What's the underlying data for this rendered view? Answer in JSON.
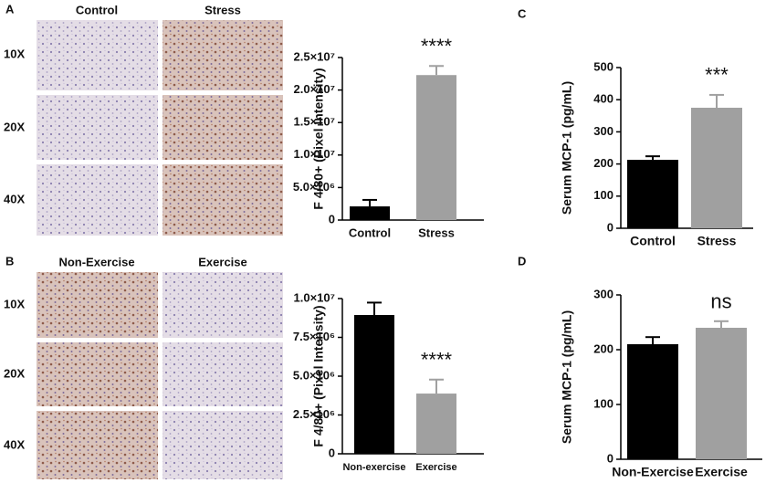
{
  "panel_labels": [
    "A",
    "B",
    "C",
    "D"
  ],
  "micrographs": [
    {
      "columns": [
        "Control",
        "Stress"
      ],
      "rows": [
        "10X",
        "20X",
        "40X"
      ]
    },
    {
      "columns": [
        "Non-Exercise",
        "Exercise"
      ],
      "rows": [
        "10X",
        "20X",
        "40X"
      ]
    }
  ],
  "chart_data": [
    {
      "type": "bar",
      "ylabel": "F 4/80+ (Pixel Intensity)",
      "categories": [
        "Control",
        "Stress"
      ],
      "values": [
        2100000,
        22300000
      ],
      "errors": [
        1000000,
        1400000
      ],
      "colors": [
        "#000000",
        "#a0a0a0"
      ],
      "annotation": "****",
      "ylim": [
        0,
        25000000
      ],
      "yticks": [
        0,
        {
          "value": 5000000,
          "label": "5.0×10⁶"
        },
        {
          "value": 10000000,
          "label": "1.0×10⁷"
        },
        {
          "value": 15000000,
          "label": "1.5×10⁷"
        },
        {
          "value": 20000000,
          "label": "2.0×10⁷"
        },
        {
          "value": 25000000,
          "label": "2.5×10⁷"
        }
      ]
    },
    {
      "type": "bar",
      "ylabel": "Serum MCP-1 (pg/mL)",
      "categories": [
        "Control",
        "Stress"
      ],
      "values": [
        213,
        375
      ],
      "errors": [
        11,
        40
      ],
      "colors": [
        "#000000",
        "#a0a0a0"
      ],
      "annotation": "***",
      "ylim": [
        0,
        500
      ],
      "yticks": [
        0,
        100,
        200,
        300,
        400,
        500
      ]
    },
    {
      "type": "bar",
      "ylabel": "F 4/80+ (Pixel Intensity)",
      "categories": [
        "Non-exercise",
        "Exercise"
      ],
      "values": [
        8940000,
        3880000
      ],
      "errors": [
        800000,
        900000
      ],
      "colors": [
        "#000000",
        "#a0a0a0"
      ],
      "annotation": "****",
      "ylim": [
        0,
        10000000
      ],
      "yticks": [
        0,
        {
          "value": 2500000,
          "label": "2.5×10⁶"
        },
        {
          "value": 5000000,
          "label": "5.0×10⁶"
        },
        {
          "value": 7500000,
          "label": "7.5×10⁶"
        },
        {
          "value": 10000000,
          "label": "1.0×10⁷"
        }
      ]
    },
    {
      "type": "bar",
      "ylabel": "Serum MCP-1 (pg/mL)",
      "categories": [
        "Non-Exercise",
        "Exercise"
      ],
      "values": [
        210,
        240
      ],
      "errors": [
        13,
        12
      ],
      "colors": [
        "#000000",
        "#a0a0a0"
      ],
      "annotation": "ns",
      "ylim": [
        0,
        300
      ],
      "yticks": [
        0,
        100,
        200,
        300
      ]
    }
  ]
}
